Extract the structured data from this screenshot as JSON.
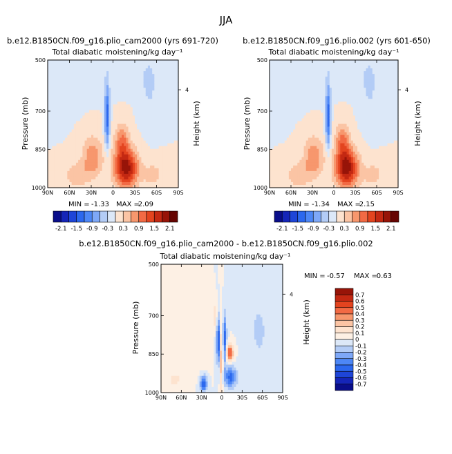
{
  "figure": {
    "title": "JJA"
  },
  "panels": [
    {
      "id": "top-left",
      "case_title": "b.e12.B1850CN.f09_g16.plio_cam2000 (yrs 691-720)",
      "subtitle": "Total diabatic moistening/kg day⁻¹",
      "min_label": "MIN =",
      "min_value": "-1.33",
      "max_label": "MAX =",
      "max_value": "2.09",
      "colorbar_labels": [
        "-2.1",
        "-1.5",
        "-0.9",
        "-0.3",
        "0.3",
        "0.9",
        "1.5",
        "2.1"
      ]
    },
    {
      "id": "top-right",
      "case_title": "b.e12.B1850CN.f09_g16.plio.002 (yrs 601-650)",
      "subtitle": "Total diabatic moistening/kg day⁻¹",
      "min_label": "MIN =",
      "min_value": "-1.34",
      "max_label": "MAX =",
      "max_value": "2.15",
      "colorbar_labels": [
        "-2.1",
        "-1.5",
        "-0.9",
        "-0.3",
        "0.3",
        "0.9",
        "1.5",
        "2.1"
      ]
    },
    {
      "id": "bottom",
      "case_title": "b.e12.B1850CN.f09_g16.plio_cam2000 - b.e12.B1850CN.f09_g16.plio.002",
      "subtitle": "Total diabatic moistening/kg day⁻¹",
      "min_label": "MIN =",
      "min_value": "-0.57",
      "max_label": "MAX =",
      "max_value": "0.63",
      "colorbar_labels": [
        "0.7",
        "0.6",
        "0.5",
        "0.4",
        "0.3",
        "0.2",
        "0.1",
        "0",
        "-0.1",
        "-0.2",
        "-0.3",
        "-0.4",
        "-0.5",
        "-0.6",
        "-0.7"
      ]
    }
  ],
  "chart_data": [
    {
      "type": "heatmap",
      "title": "b.e12.B1850CN.f09_g16.plio_cam2000 (yrs 691-720)",
      "subtitle": "Total diabatic moistening/kg day⁻¹",
      "xlabel": "",
      "ylabel": "Pressure (mb)",
      "y2label": "Height (km)",
      "x_ticks": [
        "90N",
        "60N",
        "30N",
        "0",
        "30S",
        "60S",
        "90S"
      ],
      "y_ticks": [
        500,
        700,
        850,
        1000
      ],
      "y2_ticks": [
        4
      ],
      "xlim": [
        90,
        -90
      ],
      "ylim": [
        1000,
        500
      ],
      "value_range": [
        -1.33,
        2.09
      ],
      "colorbar_levels": [
        -2.1,
        -1.8,
        -1.5,
        -1.2,
        -0.9,
        -0.6,
        -0.3,
        0,
        0.3,
        0.6,
        0.9,
        1.2,
        1.5,
        1.8,
        2.1
      ],
      "colors": [
        "#0a0e8a",
        "#1525b8",
        "#1e45d8",
        "#2c68ee",
        "#4d87f6",
        "#7ea8f8",
        "#b3ccf6",
        "#dce8f8",
        "#fde3cf",
        "#fbc4a4",
        "#f7976d",
        "#f26a44",
        "#e3441f",
        "#c32812",
        "#971408",
        "#660502"
      ]
    },
    {
      "type": "heatmap",
      "title": "b.e12.B1850CN.f09_g16.plio.002 (yrs 601-650)",
      "subtitle": "Total diabatic moistening/kg day⁻¹",
      "xlabel": "",
      "ylabel": "Pressure (mb)",
      "y2label": "Height (km)",
      "x_ticks": [
        "90N",
        "60N",
        "30N",
        "0",
        "30S",
        "60S",
        "90S"
      ],
      "y_ticks": [
        500,
        700,
        850,
        1000
      ],
      "y2_ticks": [
        4
      ],
      "xlim": [
        90,
        -90
      ],
      "ylim": [
        1000,
        500
      ],
      "value_range": [
        -1.34,
        2.15
      ],
      "colorbar_levels": [
        -2.1,
        -1.8,
        -1.5,
        -1.2,
        -0.9,
        -0.6,
        -0.3,
        0,
        0.3,
        0.6,
        0.9,
        1.2,
        1.5,
        1.8,
        2.1
      ],
      "colors": [
        "#0a0e8a",
        "#1525b8",
        "#1e45d8",
        "#2c68ee",
        "#4d87f6",
        "#7ea8f8",
        "#b3ccf6",
        "#dce8f8",
        "#fde3cf",
        "#fbc4a4",
        "#f7976d",
        "#f26a44",
        "#e3441f",
        "#c32812",
        "#971408",
        "#660502"
      ]
    },
    {
      "type": "heatmap",
      "title": "b.e12.B1850CN.f09_g16.plio_cam2000 - b.e12.B1850CN.f09_g16.plio.002",
      "subtitle": "Total diabatic moistening/kg day⁻¹",
      "xlabel": "",
      "ylabel": "Pressure (mb)",
      "y2label": "Height (km)",
      "x_ticks": [
        "90N",
        "60N",
        "30N",
        "0",
        "30S",
        "60S",
        "90S"
      ],
      "y_ticks": [
        500,
        700,
        850,
        1000
      ],
      "y2_ticks": [
        4
      ],
      "xlim": [
        90,
        -90
      ],
      "ylim": [
        1000,
        500
      ],
      "value_range": [
        -0.57,
        0.63
      ],
      "colorbar_levels": [
        0.7,
        0.6,
        0.5,
        0.4,
        0.3,
        0.2,
        0.1,
        0,
        -0.1,
        -0.2,
        -0.3,
        -0.4,
        -0.5,
        -0.6,
        -0.7
      ],
      "colors": [
        "#971408",
        "#c32812",
        "#e3441f",
        "#f26a44",
        "#f7976d",
        "#fbc4a4",
        "#fde3cf",
        "#fdf0e4",
        "#dce8f8",
        "#b3ccf6",
        "#7ea8f8",
        "#4d87f6",
        "#2c68ee",
        "#1e45d8",
        "#1525b8",
        "#0a0e8a"
      ]
    }
  ]
}
